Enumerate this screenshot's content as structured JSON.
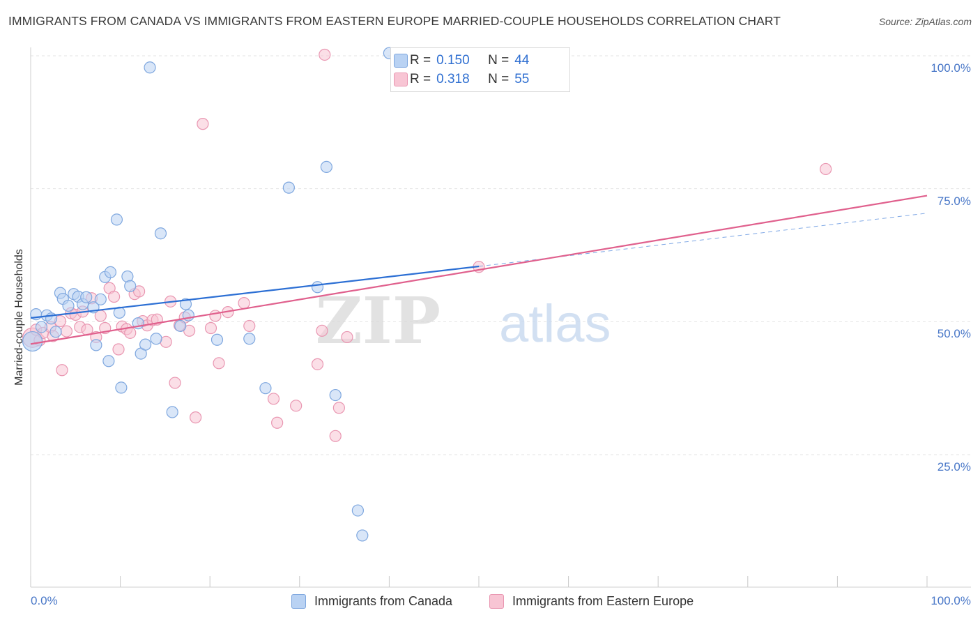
{
  "header": {
    "title": "IMMIGRANTS FROM CANADA VS IMMIGRANTS FROM EASTERN EUROPE MARRIED-COUPLE HOUSEHOLDS CORRELATION CHART",
    "source": "Source: ZipAtlas.com"
  },
  "watermark": {
    "part1": "ZIP",
    "part2": "atlas"
  },
  "legend": {
    "r_label": "R =",
    "n_label": "N =",
    "series1_r": "0.150",
    "series1_n": "44",
    "series2_r": "0.318",
    "series2_n": "55"
  },
  "colors": {
    "canada_fill": "#b9d2f3",
    "canada_stroke": "#7ea7df",
    "canada_line": "#2c6fd4",
    "ee_fill": "#f8c5d4",
    "ee_stroke": "#e996b1",
    "ee_line": "#e0608d",
    "grid": "#e3e3e3",
    "axis_text": "#4a78c8"
  },
  "chart_data": {
    "type": "scatter",
    "title": "IMMIGRANTS FROM CANADA VS IMMIGRANTS FROM EASTERN EUROPE MARRIED-COUPLE HOUSEHOLDS CORRELATION CHART",
    "xlabel": "",
    "ylabel": "Married-couple Households",
    "xlim": [
      0,
      100
    ],
    "ylim": [
      0,
      105
    ],
    "x_tick_labels": [
      "0.0%",
      "100.0%"
    ],
    "y_ticks": [
      {
        "value": 25,
        "label": "25.0%"
      },
      {
        "value": 50,
        "label": "50.0%"
      },
      {
        "value": 75,
        "label": "75.0%"
      },
      {
        "value": 100,
        "label": "100.0%"
      }
    ],
    "grid": true,
    "legend_position": "top-center",
    "series": [
      {
        "name": "Immigrants from Canada",
        "r": 0.15,
        "n": 44,
        "trend": {
          "x0": 0,
          "y0": 50.7,
          "x1": 50,
          "y1": 60.4,
          "dashed_to_x": 100,
          "dashed_to_y": 70.4
        },
        "points": [
          [
            0.2,
            46.3
          ],
          [
            0.6,
            51.4
          ],
          [
            1.2,
            49.0
          ],
          [
            1.8,
            51.2
          ],
          [
            2.3,
            50.6
          ],
          [
            2.8,
            48.1
          ],
          [
            3.3,
            55.4
          ],
          [
            3.6,
            54.3
          ],
          [
            4.2,
            53.0
          ],
          [
            4.8,
            55.2
          ],
          [
            5.3,
            54.7
          ],
          [
            5.8,
            53.3
          ],
          [
            6.2,
            54.6
          ],
          [
            7.0,
            52.7
          ],
          [
            7.3,
            45.6
          ],
          [
            7.8,
            54.2
          ],
          [
            8.3,
            58.4
          ],
          [
            8.7,
            42.6
          ],
          [
            8.9,
            59.3
          ],
          [
            9.6,
            69.2
          ],
          [
            9.9,
            51.7
          ],
          [
            10.1,
            37.6
          ],
          [
            10.8,
            58.5
          ],
          [
            11.1,
            56.7
          ],
          [
            12.0,
            49.7
          ],
          [
            12.3,
            44.0
          ],
          [
            12.8,
            45.7
          ],
          [
            13.3,
            97.8
          ],
          [
            14.0,
            46.8
          ],
          [
            14.5,
            66.6
          ],
          [
            15.8,
            33.0
          ],
          [
            16.7,
            49.2
          ],
          [
            17.3,
            53.3
          ],
          [
            17.6,
            51.2
          ],
          [
            20.8,
            46.6
          ],
          [
            24.4,
            46.8
          ],
          [
            26.2,
            37.5
          ],
          [
            28.8,
            75.2
          ],
          [
            32.0,
            56.5
          ],
          [
            33.0,
            79.1
          ],
          [
            34.0,
            36.2
          ],
          [
            36.5,
            14.5
          ],
          [
            37.0,
            9.8
          ],
          [
            40.0,
            100.5
          ]
        ]
      },
      {
        "name": "Immigrants from Eastern Europe",
        "r": 0.318,
        "n": 55,
        "trend": {
          "x0": 0,
          "y0": 45.8,
          "x1": 100,
          "y1": 73.7
        },
        "points": [
          [
            0.2,
            47.0
          ],
          [
            0.6,
            48.5
          ],
          [
            1.0,
            46.5
          ],
          [
            1.4,
            47.9
          ],
          [
            2.2,
            49.0
          ],
          [
            2.5,
            47.3
          ],
          [
            3.3,
            50.1
          ],
          [
            3.5,
            40.9
          ],
          [
            4.0,
            48.2
          ],
          [
            4.5,
            51.6
          ],
          [
            5.0,
            51.3
          ],
          [
            5.5,
            49.0
          ],
          [
            5.8,
            51.9
          ],
          [
            6.3,
            48.5
          ],
          [
            6.8,
            54.4
          ],
          [
            7.3,
            47.1
          ],
          [
            7.8,
            51.1
          ],
          [
            8.3,
            48.8
          ],
          [
            8.8,
            56.3
          ],
          [
            9.3,
            54.7
          ],
          [
            9.8,
            44.8
          ],
          [
            10.2,
            49.1
          ],
          [
            10.7,
            48.6
          ],
          [
            11.1,
            47.9
          ],
          [
            11.6,
            55.2
          ],
          [
            12.1,
            55.7
          ],
          [
            12.5,
            50.1
          ],
          [
            13.0,
            49.3
          ],
          [
            13.6,
            50.3
          ],
          [
            14.1,
            50.4
          ],
          [
            15.1,
            46.2
          ],
          [
            15.6,
            53.8
          ],
          [
            16.1,
            38.5
          ],
          [
            16.6,
            49.3
          ],
          [
            17.2,
            50.8
          ],
          [
            17.7,
            48.3
          ],
          [
            18.4,
            32.0
          ],
          [
            19.2,
            87.2
          ],
          [
            20.1,
            48.8
          ],
          [
            20.6,
            51.1
          ],
          [
            21.0,
            42.2
          ],
          [
            22.0,
            51.8
          ],
          [
            23.8,
            53.5
          ],
          [
            24.4,
            49.2
          ],
          [
            27.1,
            35.5
          ],
          [
            27.5,
            31.0
          ],
          [
            29.6,
            34.2
          ],
          [
            32.0,
            42.0
          ],
          [
            32.5,
            48.3
          ],
          [
            32.8,
            100.2
          ],
          [
            34.0,
            28.5
          ],
          [
            34.4,
            33.8
          ],
          [
            35.3,
            47.1
          ],
          [
            50.0,
            60.3
          ],
          [
            88.7,
            78.7
          ]
        ]
      }
    ]
  }
}
